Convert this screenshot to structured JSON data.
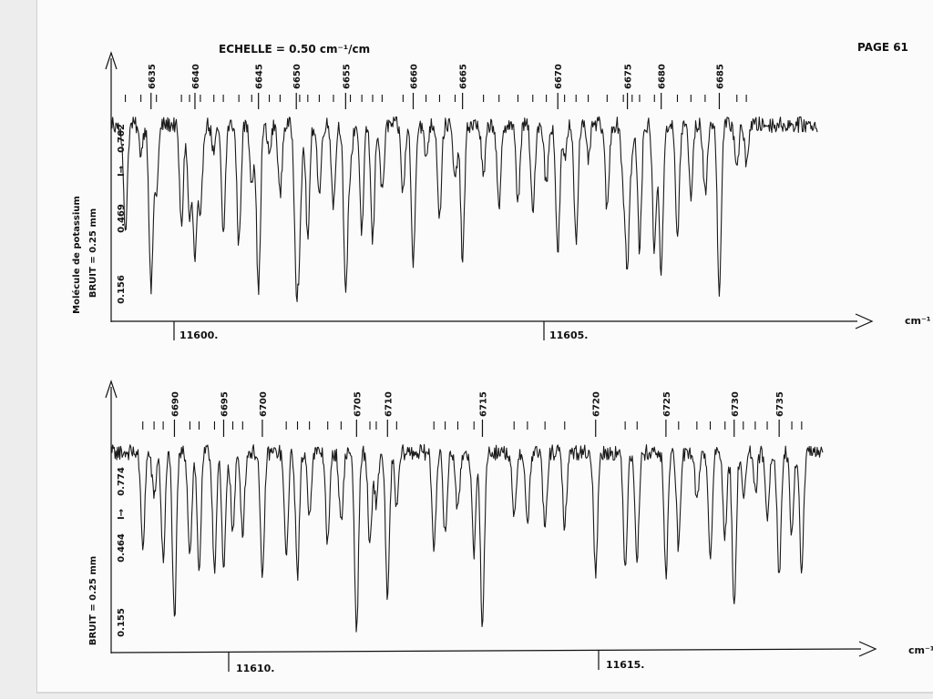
{
  "page_label": "PAGE 61",
  "colors": {
    "ink": "#111111",
    "paper": "#fbfbfb"
  },
  "chart_data": [
    {
      "type": "line",
      "id": "top",
      "scale_label": "ECHELLE = 0.50 cm⁻¹/cm",
      "ylabel_name": "Molécule de potassium",
      "ylabel_noise": "BRUIT = 0.25 mm",
      "ylabel_symbol": "I→",
      "y_ticks": [
        "0.762",
        "0.469",
        "0.156"
      ],
      "x_label": "cm⁻¹",
      "x_ticks": [
        {
          "value": 11600,
          "label": "11600."
        },
        {
          "value": 11605,
          "label": "11605."
        }
      ],
      "line_numbers": [
        "6635",
        "6640",
        "6645",
        "6650",
        "6655",
        "6660",
        "6665",
        "6670",
        "6675",
        "6680",
        "6685"
      ],
      "line_positions": [
        11599.63,
        11600.28,
        11601.22,
        11601.78,
        11602.51,
        11603.51,
        11604.24,
        11605.65,
        11606.68,
        11607.18,
        11608.04
      ],
      "ylim": [
        0.1,
        0.9
      ],
      "xlim": [
        11599.04,
        11609.49
      ],
      "minor_tick_positions": [
        11599.25,
        11599.48,
        11599.71,
        11600.08,
        11600.2,
        11600.36,
        11600.56,
        11600.7,
        11600.93,
        11601.12,
        11601.38,
        11601.54,
        11601.83,
        11601.95,
        11602.12,
        11602.33,
        11602.58,
        11602.75,
        11602.91,
        11603.05,
        11603.36,
        11603.7,
        11603.9,
        11604.13,
        11604.55,
        11604.78,
        11605.06,
        11605.28,
        11605.48,
        11605.75,
        11605.92,
        11606.1,
        11606.38,
        11606.62,
        11606.75,
        11606.86,
        11607.08,
        11607.42,
        11607.62,
        11607.83,
        11608.3,
        11608.44
      ]
    },
    {
      "type": "line",
      "id": "bottom",
      "ylabel_noise": "BRUIT = 0.25 mm",
      "ylabel_symbol": "I→",
      "y_ticks": [
        "0.774",
        "0.464",
        "0.155"
      ],
      "x_label": "cm⁻¹",
      "x_ticks": [
        {
          "value": 11610,
          "label": "11610."
        },
        {
          "value": 11615,
          "label": "11615."
        }
      ],
      "line_numbers": [
        "6690",
        "6695",
        "6700",
        "6705",
        "6710",
        "6715",
        "6720",
        "6725",
        "6730",
        "6735"
      ],
      "line_positions": [
        11609.01,
        11609.71,
        11610.26,
        11611.6,
        11612.04,
        11613.39,
        11615.0,
        11616.0,
        11616.97,
        11617.61
      ],
      "ylim": [
        0.1,
        0.9
      ],
      "xlim": [
        11608.11,
        11618.23
      ],
      "minor_tick_positions": [
        11608.56,
        11608.72,
        11608.85,
        11609.23,
        11609.36,
        11609.58,
        11609.84,
        11609.98,
        11610.6,
        11610.76,
        11610.93,
        11611.19,
        11611.38,
        11611.79,
        11611.88,
        11612.17,
        11612.7,
        11612.86,
        11613.04,
        11613.27,
        11613.84,
        11614.03,
        11614.28,
        11614.56,
        11615.42,
        11615.59,
        11616.18,
        11616.44,
        11616.63,
        11616.84,
        11617.1,
        11617.27,
        11617.44,
        11617.79,
        11617.93
      ]
    }
  ]
}
